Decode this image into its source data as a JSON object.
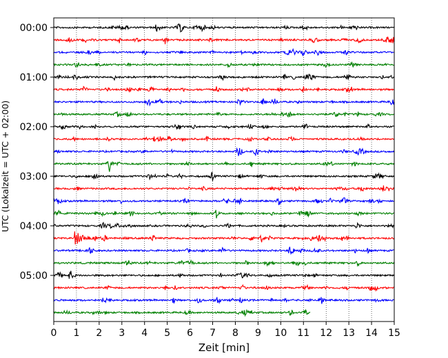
{
  "chart_data": {
    "type": "line",
    "subtype": "seismogram-helicorder",
    "xlabel": "Zeit  [min]",
    "ylabel": "UTC (Lokalzeit = UTC + 02:00)",
    "xlim": [
      0,
      15
    ],
    "x_ticks": [
      "0",
      "1",
      "2",
      "3",
      "4",
      "5",
      "6",
      "7",
      "8",
      "9",
      "10",
      "11",
      "12",
      "13",
      "14",
      "15"
    ],
    "y_tick_labels": [
      "00:00",
      "01:00",
      "02:00",
      "03:00",
      "04:00",
      "05:00"
    ],
    "grid": "vertical dotted lines at each minute",
    "trace_interval_minutes": 15,
    "trace_colors": [
      "#000000",
      "#ff0000",
      "#0000ff",
      "#008000"
    ],
    "series": [
      {
        "start": "00:00",
        "end_min": 15
      },
      {
        "start": "00:15",
        "end_min": 15
      },
      {
        "start": "00:30",
        "end_min": 15
      },
      {
        "start": "00:45",
        "end_min": 15
      },
      {
        "start": "01:00",
        "end_min": 15
      },
      {
        "start": "01:15",
        "end_min": 15
      },
      {
        "start": "01:30",
        "end_min": 15
      },
      {
        "start": "01:45",
        "end_min": 15
      },
      {
        "start": "02:00",
        "end_min": 15
      },
      {
        "start": "02:15",
        "end_min": 15
      },
      {
        "start": "02:30",
        "end_min": 15
      },
      {
        "start": "02:45",
        "end_min": 15
      },
      {
        "start": "03:00",
        "end_min": 15
      },
      {
        "start": "03:15",
        "end_min": 15
      },
      {
        "start": "03:30",
        "end_min": 15
      },
      {
        "start": "03:45",
        "end_min": 15
      },
      {
        "start": "04:00",
        "end_min": 15
      },
      {
        "start": "04:15",
        "end_min": 15,
        "event_at_min": 1.0
      },
      {
        "start": "04:30",
        "end_min": 15
      },
      {
        "start": "04:45",
        "end_min": 15
      },
      {
        "start": "05:00",
        "end_min": 15
      },
      {
        "start": "05:15",
        "end_min": 15
      },
      {
        "start": "05:30",
        "end_min": 15
      },
      {
        "start": "05:45",
        "end_min": 11.3
      }
    ]
  }
}
